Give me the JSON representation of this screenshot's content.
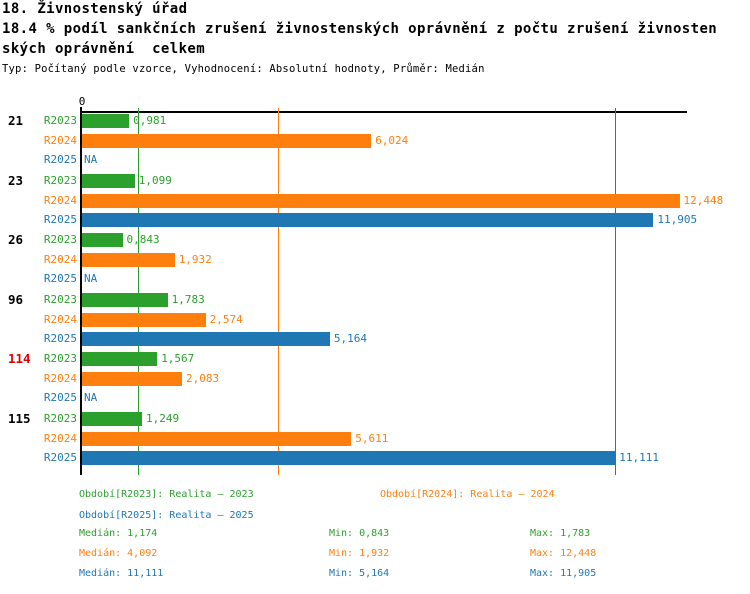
{
  "header": {
    "title": "18. Živnostenský úřad",
    "subtitle_line1": "18.4 % podíl sankčních zrušení živnostenských oprávnění z počtu zrušení živnosten",
    "subtitle_line2": "ských oprávnění  celkem",
    "meta": "Typ: Počítaný podle vzorce, Vyhodnocení: Absolutní hodnoty, Průměr: Medián"
  },
  "colors": {
    "green": "#2ca02c",
    "orange": "#ff7f0e",
    "blue": "#1f77b4",
    "highlight": "#e00000",
    "axis": "#000000"
  },
  "chart_data": {
    "type": "bar",
    "orientation": "horizontal",
    "value_format": "decimal-comma",
    "axis": {
      "zero_label": "0",
      "xlim": [
        0,
        12.625
      ],
      "gridlines": "median-line-per-series"
    },
    "na_text": "NA",
    "series": [
      {
        "id": "R2023",
        "label": "R2023",
        "color_key": "green",
        "name": "Realita – 2023",
        "median": 1.174,
        "min": 0.843,
        "max": 1.783
      },
      {
        "id": "R2024",
        "label": "R2024",
        "color_key": "orange",
        "name": "Realita – 2024",
        "median": 4.092,
        "min": 1.932,
        "max": 12.448
      },
      {
        "id": "R2025",
        "label": "R2025",
        "color_key": "blue",
        "name": "Realita – 2025",
        "median": 11.111,
        "min": 5.164,
        "max": 11.905
      }
    ],
    "groups": [
      {
        "label": "21",
        "highlighted": false,
        "values": [
          {
            "v": 0.981,
            "text": "0,981"
          },
          {
            "v": 6.024,
            "text": "6,024"
          },
          {
            "v": null,
            "text": "NA"
          }
        ]
      },
      {
        "label": "23",
        "highlighted": false,
        "values": [
          {
            "v": 1.099,
            "text": "1,099"
          },
          {
            "v": 12.448,
            "text": "12,448"
          },
          {
            "v": 11.905,
            "text": "11,905"
          }
        ]
      },
      {
        "label": "26",
        "highlighted": false,
        "values": [
          {
            "v": 0.843,
            "text": "0,843"
          },
          {
            "v": 1.932,
            "text": "1,932"
          },
          {
            "v": null,
            "text": "NA"
          }
        ]
      },
      {
        "label": "96",
        "highlighted": false,
        "values": [
          {
            "v": 1.783,
            "text": "1,783"
          },
          {
            "v": 2.574,
            "text": "2,574"
          },
          {
            "v": 5.164,
            "text": "5,164"
          }
        ]
      },
      {
        "label": "114",
        "highlighted": true,
        "values": [
          {
            "v": 1.567,
            "text": "1,567"
          },
          {
            "v": 2.083,
            "text": "2,083"
          },
          {
            "v": null,
            "text": "NA"
          }
        ]
      },
      {
        "label": "115",
        "highlighted": false,
        "values": [
          {
            "v": 1.249,
            "text": "1,249"
          },
          {
            "v": 5.611,
            "text": "5,611"
          },
          {
            "v": 11.111,
            "text": "11,111"
          }
        ]
      }
    ]
  },
  "legend": {
    "items": [
      {
        "text": "Období[R2023]: Realita – 2023",
        "color_key": "green",
        "row": 0,
        "col": 0
      },
      {
        "text": "Období[R2024]: Realita – 2024",
        "color_key": "orange",
        "row": 0,
        "col": 1
      },
      {
        "text": "Období[R2025]: Realita – 2025",
        "color_key": "blue",
        "row": 1,
        "col": 0
      }
    ]
  },
  "stats": {
    "rows": [
      {
        "color_key": "green",
        "median": "Medián: 1,174",
        "min": "Min: 0,843",
        "max": "Max: 1,783"
      },
      {
        "color_key": "orange",
        "median": "Medián: 4,092",
        "min": "Min: 1,932",
        "max": "Max: 12,448"
      },
      {
        "color_key": "blue",
        "median": "Medián: 11,111",
        "min": "Min: 5,164",
        "max": "Max: 11,905"
      }
    ]
  }
}
